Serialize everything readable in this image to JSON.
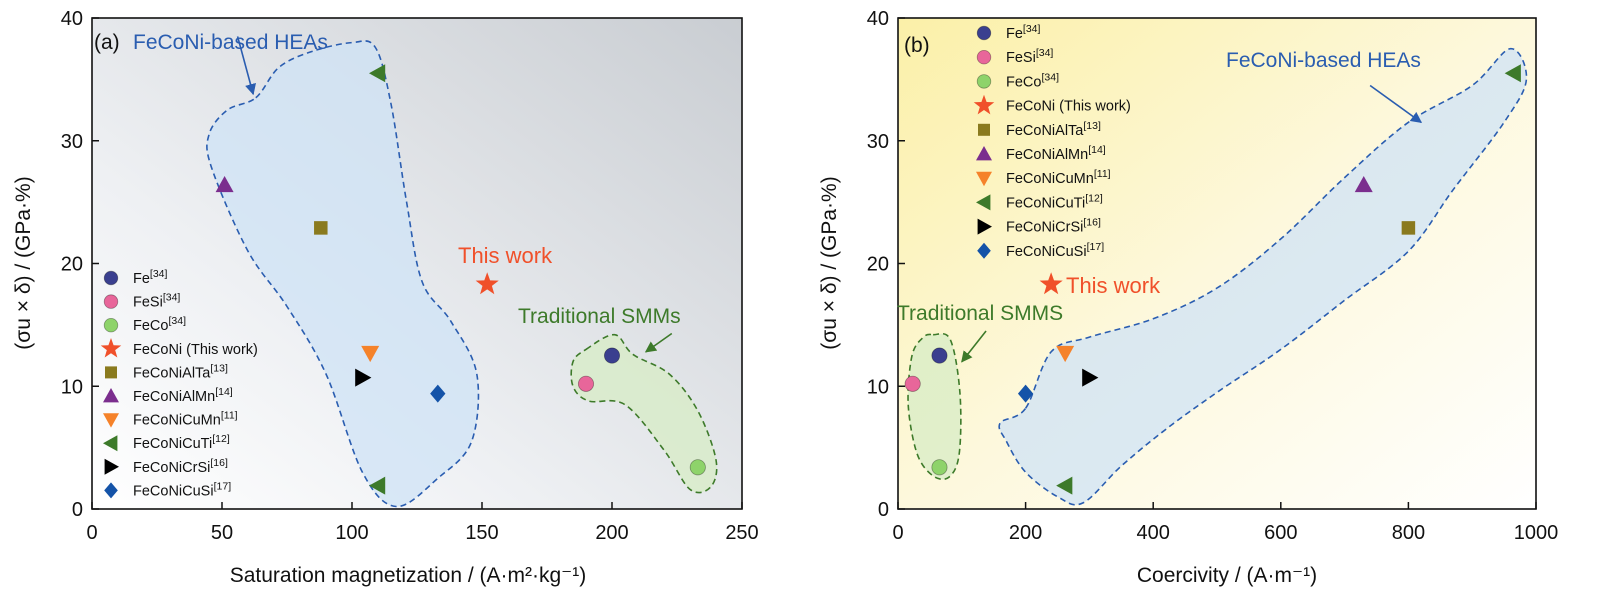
{
  "chart_data": [
    {
      "type": "scatter",
      "panel_label": "(a)",
      "xlabel": "Saturation magnetization / (A·m²·kg⁻¹)",
      "ylabel": "(σu × δ) / (GPa·%)",
      "xlim": [
        0,
        250
      ],
      "ylim": [
        0,
        40
      ],
      "x_ticks": [
        "0",
        "50",
        "100",
        "150",
        "200",
        "250"
      ],
      "y_ticks": [
        "0",
        "10",
        "20",
        "30",
        "40"
      ],
      "legend_position": "lower-left",
      "series": [
        {
          "name": "Fe[34]",
          "marker": "circle",
          "color": "#3a3f8f",
          "x": 200,
          "y": 12.5
        },
        {
          "name": "FeSi[34]",
          "marker": "circle",
          "color": "#e8669a",
          "x": 190,
          "y": 10.2
        },
        {
          "name": "FeCo[34]",
          "marker": "circle",
          "color": "#8ed36a",
          "x": 233,
          "y": 3.4
        },
        {
          "name": "FeCoNi (This work)",
          "marker": "star",
          "color": "#f0502a",
          "x": 152,
          "y": 18.3
        },
        {
          "name": "FeCoNiAlTa[13]",
          "marker": "square",
          "color": "#8a7a1e",
          "x": 88,
          "y": 22.9
        },
        {
          "name": "FeCoNiAlMn[14]",
          "marker": "triangle-up",
          "color": "#7b2e8e",
          "x": 51,
          "y": 26.4
        },
        {
          "name": "FeCoNiCuMn[11]",
          "marker": "triangle-down",
          "color": "#f5822a",
          "x": 107,
          "y": 12.7
        },
        {
          "name": "FeCoNiCuTi[12]",
          "marker": "triangle-left",
          "color": "#3d7a2a",
          "points": [
            [
              110,
              35.5
            ],
            [
              110,
              1.9
            ]
          ]
        },
        {
          "name": "FeCoNiCrSi[16]",
          "marker": "triangle-right",
          "color": "#000000",
          "x": 104,
          "y": 10.7
        },
        {
          "name": "FeCoNiCuSi[17]",
          "marker": "diamond",
          "color": "#1453a8",
          "x": 133,
          "y": 9.4
        }
      ],
      "regions": [
        {
          "name": "FeCoNi-based HEAs",
          "color": "#2a5db0",
          "fill": "#cfe3f6",
          "outline": [
            [
              63,
              33.5
            ],
            [
              72,
              36
            ],
            [
              85,
              37.3
            ],
            [
              100,
              38
            ],
            [
              109,
              37.6
            ],
            [
              115,
              33
            ],
            [
              121,
              25
            ],
            [
              127,
              18.5
            ],
            [
              138,
              15.3
            ],
            [
              148,
              11
            ],
            [
              146,
              5.5
            ],
            [
              133,
              2.5
            ],
            [
              117,
              0.2
            ],
            [
              104,
              3
            ],
            [
              90,
              11
            ],
            [
              75,
              16.5
            ],
            [
              60,
              21
            ],
            [
              46,
              27.8
            ],
            [
              45,
              30.5
            ],
            [
              52,
              32.5
            ]
          ]
        },
        {
          "name": "Traditional SMMs",
          "color": "#3d7a2a",
          "fill": "#d7ecc6",
          "outline": [
            [
              190,
              13
            ],
            [
              201,
              14.2
            ],
            [
              208,
              12.6
            ],
            [
              222,
              11
            ],
            [
              233,
              8
            ],
            [
              240,
              4
            ],
            [
              238,
              1.8
            ],
            [
              230,
              1.6
            ],
            [
              220,
              4.8
            ],
            [
              205,
              8.5
            ],
            [
              191,
              8.8
            ],
            [
              185,
              10
            ],
            [
              185,
              12
            ]
          ]
        }
      ],
      "annotations": [
        {
          "text": "FeCoNi-based HEAs",
          "color": "#2a5db0",
          "arrow_from": [
            56,
            38.5
          ],
          "arrow_to": [
            62,
            33.8
          ]
        },
        {
          "text": "This work",
          "color": "#f0502a"
        },
        {
          "text": "Traditional SMMs",
          "color": "#3d7a2a",
          "arrow_from": [
            223,
            14.3
          ],
          "arrow_to": [
            213,
            12.8
          ]
        }
      ]
    },
    {
      "type": "scatter",
      "panel_label": "(b)",
      "xlabel": "Coercivity / (A·m⁻¹)",
      "ylabel": "(σu × δ) / (GPa·%)",
      "xlim": [
        0,
        1000
      ],
      "ylim": [
        0,
        40
      ],
      "x_ticks": [
        "0",
        "200",
        "400",
        "600",
        "800",
        "1000"
      ],
      "y_ticks": [
        "0",
        "10",
        "20",
        "30",
        "40"
      ],
      "legend_position": "top-left",
      "series": [
        {
          "name": "Fe[34]",
          "marker": "circle",
          "color": "#3a3f8f",
          "x": 65,
          "y": 12.5
        },
        {
          "name": "FeSi[34]",
          "marker": "circle",
          "color": "#e8669a",
          "x": 23,
          "y": 10.2
        },
        {
          "name": "FeCo[34]",
          "marker": "circle",
          "color": "#8ed36a",
          "x": 65,
          "y": 3.4
        },
        {
          "name": "FeCoNi (This work)",
          "marker": "star",
          "color": "#f0502a",
          "x": 240,
          "y": 18.3
        },
        {
          "name": "FeCoNiAlTa[13]",
          "marker": "square",
          "color": "#8a7a1e",
          "x": 800,
          "y": 22.9
        },
        {
          "name": "FeCoNiAlMn[14]",
          "marker": "triangle-up",
          "color": "#7b2e8e",
          "x": 730,
          "y": 26.4
        },
        {
          "name": "FeCoNiCuMn[11]",
          "marker": "triangle-down",
          "color": "#f5822a",
          "x": 262,
          "y": 12.7
        },
        {
          "name": "FeCoNiCuTi[12]",
          "marker": "triangle-left",
          "color": "#3d7a2a",
          "points": [
            [
              965,
              35.5
            ],
            [
              262,
              1.9
            ]
          ]
        },
        {
          "name": "FeCoNiCrSi[16]",
          "marker": "triangle-right",
          "color": "#000000",
          "x": 300,
          "y": 10.7
        },
        {
          "name": "FeCoNiCuSi[17]",
          "marker": "diamond",
          "color": "#1453a8",
          "x": 200,
          "y": 9.4
        }
      ],
      "regions": [
        {
          "name": "FeCoNi-based HEAs",
          "color": "#2a5db0",
          "fill": "#cfe3f6",
          "outline": [
            [
              200,
              8.2
            ],
            [
              240,
              12.8
            ],
            [
              300,
              14
            ],
            [
              400,
              15.5
            ],
            [
              500,
              18
            ],
            [
              600,
              22
            ],
            [
              700,
              27
            ],
            [
              800,
              31.5
            ],
            [
              900,
              34.5
            ],
            [
              960,
              37.5
            ],
            [
              985,
              35
            ],
            [
              950,
              31.5
            ],
            [
              870,
              26
            ],
            [
              800,
              21
            ],
            [
              700,
              17
            ],
            [
              600,
              13
            ],
            [
              500,
              9.5
            ],
            [
              420,
              6.5
            ],
            [
              350,
              3.5
            ],
            [
              290,
              0.5
            ],
            [
              250,
              1
            ],
            [
              200,
              3
            ],
            [
              170,
              5.5
            ],
            [
              160,
              7
            ]
          ]
        },
        {
          "name": "Traditional SMMs",
          "color": "#3d7a2a",
          "fill": "#d7ecc6",
          "outline": [
            [
              55,
              14.2
            ],
            [
              82,
              13.8
            ],
            [
              97,
              9.5
            ],
            [
              96,
              4.5
            ],
            [
              80,
              2.6
            ],
            [
              55,
              2.7
            ],
            [
              30,
              4.5
            ],
            [
              16,
              8.5
            ],
            [
              22,
              12.5
            ],
            [
              40,
              14
            ]
          ]
        }
      ],
      "annotations": [
        {
          "text": "FeCoNi-based HEAs",
          "color": "#2a5db0",
          "arrow_from": [
            740,
            34.5
          ],
          "arrow_to": [
            820,
            31.5
          ]
        },
        {
          "text": "This work",
          "color": "#f0502a"
        },
        {
          "text": "Traditional SMMS",
          "color": "#3d7a2a",
          "arrow_from": [
            138,
            14.5
          ],
          "arrow_to": [
            100,
            12
          ]
        }
      ]
    }
  ]
}
